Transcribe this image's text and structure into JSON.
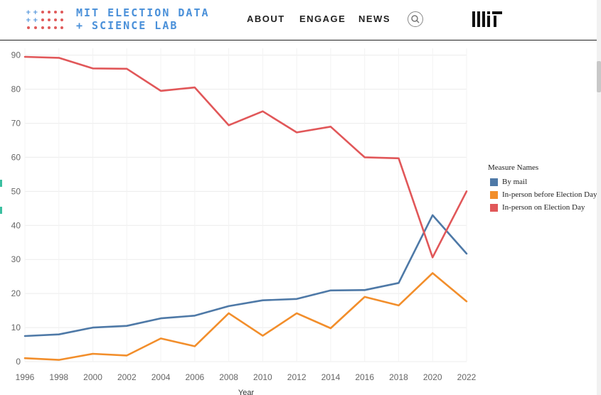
{
  "header": {
    "logo_line1": "MIT ELECTION DATA",
    "logo_line2": "+ SCIENCE LAB",
    "nav": [
      "ABOUT",
      "ENGAGE",
      "NEWS"
    ],
    "brand_color": "#4a90d9",
    "logo_dot_color": "#e05a5a",
    "right_logo": "mit-logo"
  },
  "chart_data": {
    "type": "line",
    "xlabel": "Year",
    "ylabel": "",
    "x": [
      1996,
      1998,
      2000,
      2002,
      2004,
      2006,
      2008,
      2010,
      2012,
      2014,
      2016,
      2018,
      2020,
      2022
    ],
    "x_ticks": [
      "1996",
      "1998",
      "2000",
      "2002",
      "2004",
      "2006",
      "2008",
      "2010",
      "2012",
      "2014",
      "2016",
      "2018",
      "2020",
      "2022"
    ],
    "y_ticks": [
      "0",
      "10",
      "20",
      "30",
      "40",
      "50",
      "60",
      "70",
      "80",
      "90"
    ],
    "ylim": [
      0,
      92
    ],
    "grid": true,
    "legend_title": "Measure Names",
    "legend_position": "right",
    "series": [
      {
        "name": "By mail",
        "color": "#4e79a7",
        "values": [
          7.5,
          8.0,
          10.0,
          10.5,
          12.7,
          13.5,
          16.3,
          18.0,
          18.4,
          20.9,
          21.0,
          23.1,
          43.0,
          31.7
        ]
      },
      {
        "name": "In-person before Election Day",
        "color": "#f28e2b",
        "values": [
          1.0,
          0.5,
          2.3,
          1.8,
          6.8,
          4.5,
          14.2,
          7.6,
          14.2,
          9.8,
          19.0,
          16.5,
          26.0,
          17.7
        ]
      },
      {
        "name": "In-person on Election Day",
        "color": "#e15759",
        "values": [
          89.5,
          89.2,
          86.1,
          86.0,
          79.5,
          80.5,
          69.4,
          73.5,
          67.3,
          69.0,
          60.0,
          59.7,
          30.6,
          50.0
        ]
      }
    ]
  }
}
